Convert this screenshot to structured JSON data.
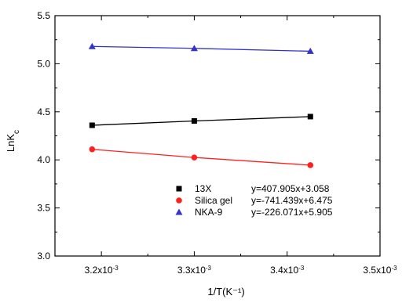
{
  "chart_data": {
    "type": "scatter",
    "title": "",
    "xlabel": "1/T(K⁻¹)",
    "ylabel": "LnK",
    "ylabel_subscript": "c",
    "xlim": [
      0.00315,
      0.0035
    ],
    "ylim": [
      3.0,
      5.5
    ],
    "x_ticks": [
      0.0032,
      0.0033,
      0.0034,
      0.0035
    ],
    "x_tick_labels": [
      {
        "base": "3.2x10",
        "exp": "-3"
      },
      {
        "base": "3.3x10",
        "exp": "-3"
      },
      {
        "base": "3.4x10",
        "exp": "-3"
      },
      {
        "base": "3.5x10",
        "exp": "-3"
      }
    ],
    "y_ticks": [
      3.0,
      3.5,
      4.0,
      4.5,
      5.0,
      5.5
    ],
    "y_tick_labels": [
      "3.0",
      "3.5",
      "4.0",
      "4.5",
      "5.0",
      "5.5"
    ],
    "grid": false,
    "legend_position": "bottom-right",
    "series": [
      {
        "name": "13X",
        "equation": "y=407.905x+3.058",
        "color": "#000000",
        "marker": "square",
        "x": [
          0.00319,
          0.0033,
          0.003425
        ],
        "y": [
          4.36,
          4.405,
          4.45
        ]
      },
      {
        "name": "Silica gel",
        "equation": "y=-741.439x+6.475",
        "color": "#ff2020",
        "marker": "circle",
        "x": [
          0.00319,
          0.0033,
          0.003425
        ],
        "y": [
          4.11,
          4.025,
          3.945
        ]
      },
      {
        "name": "NKA-9",
        "equation": "y=-226.071x+5.905",
        "color": "#3333cc",
        "marker": "triangle",
        "x": [
          0.00319,
          0.0033,
          0.003425
        ],
        "y": [
          5.18,
          5.16,
          5.13
        ]
      }
    ]
  }
}
